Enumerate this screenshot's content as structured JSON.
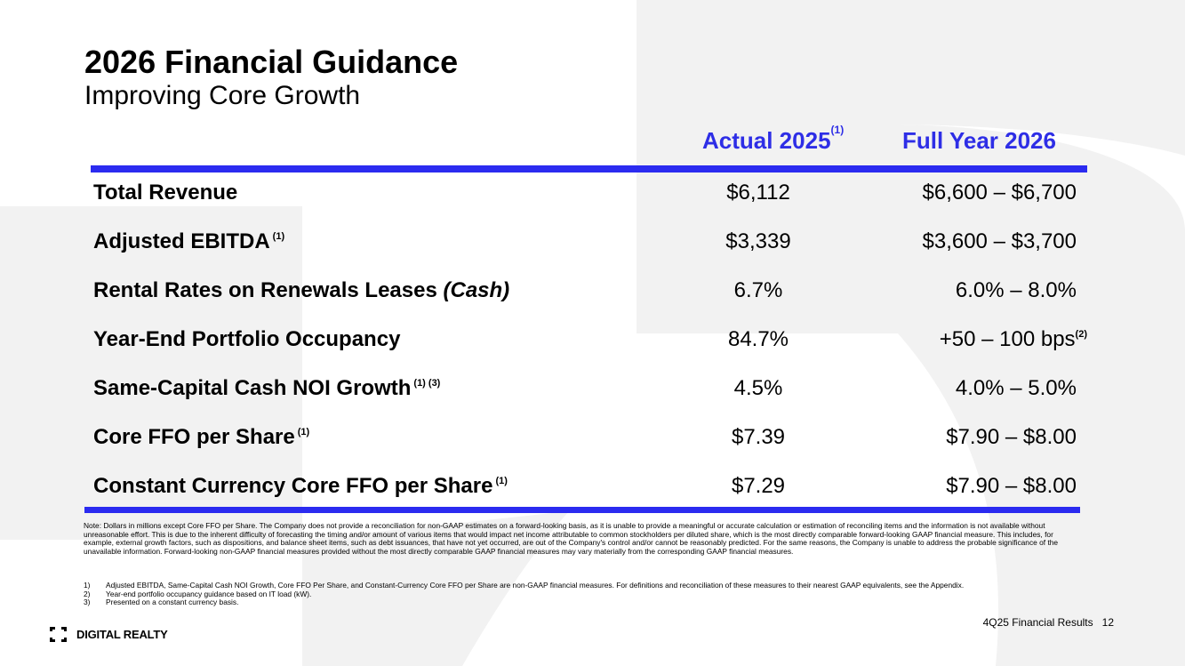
{
  "header": {
    "title": "2026 Financial Guidance",
    "subtitle": "Improving Core Growth"
  },
  "columns": {
    "actual": {
      "label": "Actual 2025",
      "footnote": "(1)"
    },
    "full_year": {
      "label": "Full Year 2026"
    }
  },
  "rows": [
    {
      "label": "Total Revenue",
      "actual": "$6,112",
      "full_year": "$6,600 – $6,700"
    },
    {
      "label": "Adjusted EBITDA",
      "label_footnote": "(1)",
      "actual": "$3,339",
      "full_year": "$3,600 – $3,700"
    },
    {
      "label": "Rental Rates on Renewals Leases ",
      "label_italic": "(Cash)",
      "actual": "6.7%",
      "full_year": "6.0% – 8.0%"
    },
    {
      "label": "Year-End Portfolio Occupancy",
      "actual": "84.7%",
      "full_year": "+50 – 100 bps",
      "full_year_footnote": "(2)"
    },
    {
      "label": "Same-Capital Cash NOI Growth",
      "label_footnote": "(1) (3)",
      "actual": "4.5%",
      "full_year": "4.0% – 5.0%"
    },
    {
      "label": "Core FFO per Share",
      "label_footnote": "(1)",
      "actual": "$7.39",
      "full_year": "$7.90 – $8.00"
    },
    {
      "label": "Constant Currency Core FFO per Share",
      "label_footnote": "(1)",
      "actual": "$7.29",
      "full_year": "$7.90 – $8.00"
    }
  ],
  "note": "Note: Dollars in millions except Core FFO per Share. The Company does not provide a reconciliation for non-GAAP estimates on a forward-looking basis, as it is unable to provide a meaningful or accurate calculation or estimation of reconciling items and the information is not available without unreasonable effort. This is due to the inherent difficulty of forecasting the timing and/or amount of various items that would impact net income attributable to common stockholders per diluted share, which is the most directly comparable forward-looking GAAP financial measure. This includes, for example, external growth factors, such as dispositions, and balance sheet items, such as debt issuances, that have not yet occurred, are out of the Company's control and/or cannot be reasonably predicted. For the same reasons, the Company is unable to address the probable significance of the unavailable information. Forward-looking non-GAAP financial measures provided without the most directly comparable GAAP financial measures may vary materially from the corresponding GAAP financial measures.",
  "footnotes": [
    {
      "num": "1)",
      "text": "Adjusted EBITDA, Same-Capital Cash NOI Growth, Core FFO Per Share, and Constant-Currency Core FFO per Share are non-GAAP financial measures. For definitions and reconciliation of these measures to their nearest GAAP equivalents, see the Appendix."
    },
    {
      "num": "2)",
      "text": "Year-end portfolio occupancy guidance based on IT load (kW)."
    },
    {
      "num": "3)",
      "text": "Presented on a constant currency basis."
    }
  ],
  "footer": {
    "logo_text": "DIGITAL REALTY",
    "report": "4Q25 Financial Results",
    "page_number": "12"
  },
  "colors": {
    "accent_blue": "#2b2bf0",
    "heading_blue": "#2e2ee6",
    "background_shape": "#f2f2f2"
  },
  "icons": {
    "logo": "digital-realty-bracket-logo-icon"
  }
}
